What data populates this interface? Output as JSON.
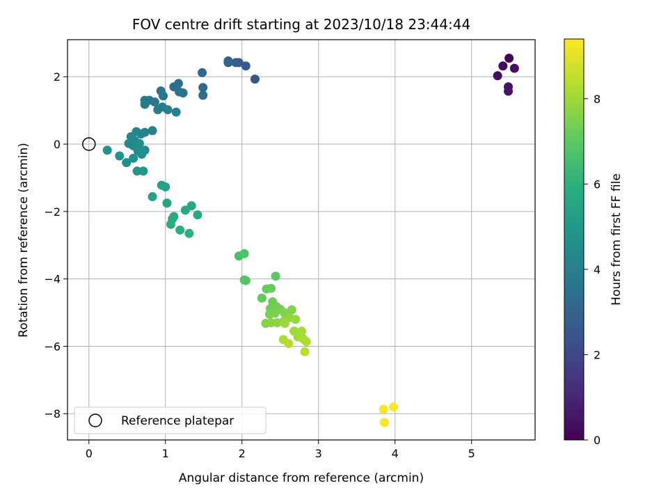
{
  "chart_data": {
    "type": "scatter",
    "title": "FOV centre drift starting at 2023/10/18 23:44:44",
    "xlabel": "Angular distance from reference (arcmin)",
    "ylabel": "Rotation from reference (arcmin)",
    "xlim": [
      -0.28,
      5.83
    ],
    "ylim": [
      -8.78,
      3.1
    ],
    "xticks": [
      0,
      1,
      2,
      3,
      4,
      5
    ],
    "yticks": [
      -8,
      -6,
      -4,
      -2,
      0,
      2
    ],
    "grid": true,
    "legend": {
      "placement": "lower-left",
      "entries": [
        "Reference platepar"
      ]
    },
    "reference_point": {
      "x": 0,
      "y": 0
    },
    "colorbar": {
      "label": "Hours from first FF file",
      "colormap": "viridis",
      "range": [
        0,
        9.4
      ],
      "ticks": [
        0,
        2,
        4,
        6,
        8
      ]
    },
    "points": [
      {
        "x": 5.49,
        "y": 2.55,
        "h": 0.1
      },
      {
        "x": 5.41,
        "y": 2.32,
        "h": 0.2
      },
      {
        "x": 5.34,
        "y": 2.03,
        "h": 0.3
      },
      {
        "x": 5.56,
        "y": 2.25,
        "h": 0.35
      },
      {
        "x": 5.48,
        "y": 1.7,
        "h": 0.45
      },
      {
        "x": 5.48,
        "y": 1.57,
        "h": 0.5
      },
      {
        "x": 2.17,
        "y": 1.93,
        "h": 2.5
      },
      {
        "x": 2.05,
        "y": 2.32,
        "h": 2.6
      },
      {
        "x": 1.96,
        "y": 2.42,
        "h": 2.7
      },
      {
        "x": 1.92,
        "y": 2.42,
        "h": 2.8
      },
      {
        "x": 1.82,
        "y": 2.42,
        "h": 2.9
      },
      {
        "x": 1.82,
        "y": 2.47,
        "h": 2.95
      },
      {
        "x": 1.48,
        "y": 2.12,
        "h": 3.1
      },
      {
        "x": 1.49,
        "y": 1.68,
        "h": 3.2
      },
      {
        "x": 1.49,
        "y": 1.45,
        "h": 3.3
      },
      {
        "x": 1.17,
        "y": 1.8,
        "h": 3.35
      },
      {
        "x": 1.11,
        "y": 1.7,
        "h": 3.4
      },
      {
        "x": 1.23,
        "y": 1.52,
        "h": 3.5
      },
      {
        "x": 1.18,
        "y": 1.55,
        "h": 3.55
      },
      {
        "x": 0.94,
        "y": 1.58,
        "h": 3.6
      },
      {
        "x": 0.97,
        "y": 1.43,
        "h": 3.65
      },
      {
        "x": 0.86,
        "y": 1.25,
        "h": 3.7
      },
      {
        "x": 0.79,
        "y": 1.3,
        "h": 3.75
      },
      {
        "x": 0.73,
        "y": 1.3,
        "h": 3.8
      },
      {
        "x": 0.73,
        "y": 1.18,
        "h": 3.85
      },
      {
        "x": 0.9,
        "y": 1.02,
        "h": 3.9
      },
      {
        "x": 0.96,
        "y": 1.1,
        "h": 3.95
      },
      {
        "x": 1.03,
        "y": 1.02,
        "h": 4.0
      },
      {
        "x": 1.14,
        "y": 0.95,
        "h": 4.05
      },
      {
        "x": 0.83,
        "y": 0.4,
        "h": 4.1
      },
      {
        "x": 0.73,
        "y": 0.35,
        "h": 4.15
      },
      {
        "x": 0.68,
        "y": 0.3,
        "h": 4.2
      },
      {
        "x": 0.62,
        "y": 0.37,
        "h": 4.25
      },
      {
        "x": 0.55,
        "y": 0.22,
        "h": 4.3
      },
      {
        "x": 0.6,
        "y": 0.1,
        "h": 4.35
      },
      {
        "x": 0.52,
        "y": 0.02,
        "h": 4.4
      },
      {
        "x": 0.58,
        "y": -0.05,
        "h": 4.45
      },
      {
        "x": 0.66,
        "y": 0.02,
        "h": 4.5
      },
      {
        "x": 0.64,
        "y": -0.2,
        "h": 4.55
      },
      {
        "x": 0.73,
        "y": -0.18,
        "h": 4.6
      },
      {
        "x": 0.69,
        "y": -0.3,
        "h": 4.65
      },
      {
        "x": 0.58,
        "y": -0.42,
        "h": 4.7
      },
      {
        "x": 0.49,
        "y": -0.55,
        "h": 4.75
      },
      {
        "x": 0.4,
        "y": -0.35,
        "h": 4.8
      },
      {
        "x": 0.24,
        "y": -0.18,
        "h": 4.85
      },
      {
        "x": 0.63,
        "y": -0.8,
        "h": 4.9
      },
      {
        "x": 0.71,
        "y": -0.8,
        "h": 4.95
      },
      {
        "x": 0.95,
        "y": -1.22,
        "h": 5.3
      },
      {
        "x": 1.0,
        "y": -1.27,
        "h": 5.35
      },
      {
        "x": 0.83,
        "y": -1.56,
        "h": 5.4
      },
      {
        "x": 1.02,
        "y": -1.75,
        "h": 5.5
      },
      {
        "x": 1.34,
        "y": -1.83,
        "h": 5.6
      },
      {
        "x": 1.26,
        "y": -1.96,
        "h": 5.65
      },
      {
        "x": 1.42,
        "y": -2.1,
        "h": 5.7
      },
      {
        "x": 1.11,
        "y": -2.15,
        "h": 5.75
      },
      {
        "x": 1.09,
        "y": -2.22,
        "h": 5.8
      },
      {
        "x": 1.07,
        "y": -2.38,
        "h": 5.85
      },
      {
        "x": 1.19,
        "y": -2.55,
        "h": 5.9
      },
      {
        "x": 1.31,
        "y": -2.65,
        "h": 5.95
      },
      {
        "x": 1.96,
        "y": -3.32,
        "h": 6.6
      },
      {
        "x": 2.03,
        "y": -3.25,
        "h": 6.7
      },
      {
        "x": 2.03,
        "y": -4.03,
        "h": 6.8
      },
      {
        "x": 2.05,
        "y": -4.05,
        "h": 6.85
      },
      {
        "x": 2.44,
        "y": -3.92,
        "h": 7.0
      },
      {
        "x": 2.26,
        "y": -4.57,
        "h": 7.1
      },
      {
        "x": 2.32,
        "y": -4.3,
        "h": 7.15
      },
      {
        "x": 2.38,
        "y": -4.28,
        "h": 7.2
      },
      {
        "x": 2.4,
        "y": -4.68,
        "h": 7.25
      },
      {
        "x": 2.37,
        "y": -4.88,
        "h": 7.3
      },
      {
        "x": 2.45,
        "y": -4.82,
        "h": 7.35
      },
      {
        "x": 2.5,
        "y": -4.9,
        "h": 7.4
      },
      {
        "x": 2.36,
        "y": -5.05,
        "h": 7.45
      },
      {
        "x": 2.43,
        "y": -5.02,
        "h": 7.5
      },
      {
        "x": 2.55,
        "y": -5.0,
        "h": 7.55
      },
      {
        "x": 2.65,
        "y": -4.92,
        "h": 7.6
      },
      {
        "x": 2.31,
        "y": -5.32,
        "h": 7.65
      },
      {
        "x": 2.38,
        "y": -5.3,
        "h": 7.7
      },
      {
        "x": 2.46,
        "y": -5.3,
        "h": 7.75
      },
      {
        "x": 2.55,
        "y": -5.25,
        "h": 7.8
      },
      {
        "x": 2.62,
        "y": -5.15,
        "h": 7.85
      },
      {
        "x": 2.7,
        "y": -5.2,
        "h": 7.9
      },
      {
        "x": 2.56,
        "y": -5.32,
        "h": 7.95
      },
      {
        "x": 2.68,
        "y": -5.55,
        "h": 8.0
      },
      {
        "x": 2.73,
        "y": -5.72,
        "h": 8.05
      },
      {
        "x": 2.78,
        "y": -5.55,
        "h": 8.1
      },
      {
        "x": 2.8,
        "y": -5.78,
        "h": 8.15
      },
      {
        "x": 2.84,
        "y": -5.86,
        "h": 8.2
      },
      {
        "x": 2.54,
        "y": -5.8,
        "h": 8.25
      },
      {
        "x": 2.61,
        "y": -5.92,
        "h": 8.3
      },
      {
        "x": 2.82,
        "y": -6.16,
        "h": 8.35
      },
      {
        "x": 3.85,
        "y": -7.87,
        "h": 9.3
      },
      {
        "x": 3.98,
        "y": -7.8,
        "h": 9.35
      },
      {
        "x": 3.86,
        "y": -8.26,
        "h": 9.4
      }
    ]
  }
}
